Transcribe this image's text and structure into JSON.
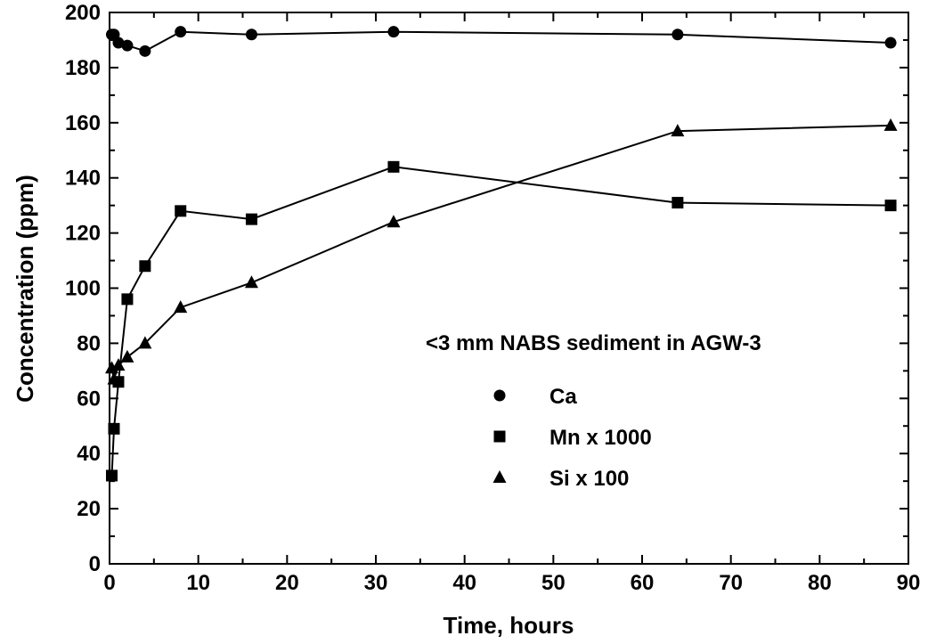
{
  "chart_data": {
    "type": "line",
    "title": "",
    "xlabel": "Time, hours",
    "ylabel": "Concentration (ppm)",
    "xlim": [
      0,
      90
    ],
    "ylim": [
      0,
      200
    ],
    "xticks": [
      0,
      10,
      20,
      30,
      40,
      50,
      60,
      70,
      80,
      90
    ],
    "yticks": [
      0,
      20,
      40,
      60,
      80,
      100,
      120,
      140,
      160,
      180,
      200
    ],
    "grid": false,
    "annotation": "<3 mm NABS sediment in AGW-3",
    "legend_position": "center-right",
    "series": [
      {
        "name": "Ca",
        "marker": "circle",
        "x": [
          0.25,
          0.5,
          1,
          2,
          4,
          8,
          16,
          32,
          64,
          88
        ],
        "y": [
          192,
          192,
          189,
          188,
          186,
          193,
          192,
          193,
          192,
          189
        ]
      },
      {
        "name": "Mn x 1000",
        "marker": "square",
        "x": [
          0.25,
          0.5,
          1,
          2,
          4,
          8,
          16,
          32,
          64,
          88
        ],
        "y": [
          32,
          49,
          66,
          96,
          108,
          128,
          125,
          144,
          131,
          130
        ]
      },
      {
        "name": "Si x 100",
        "marker": "triangle",
        "x": [
          0.25,
          0.5,
          1,
          2,
          4,
          8,
          16,
          32,
          64,
          88
        ],
        "y": [
          71,
          67,
          72,
          75,
          80,
          93,
          102,
          124,
          157,
          159
        ]
      }
    ]
  }
}
